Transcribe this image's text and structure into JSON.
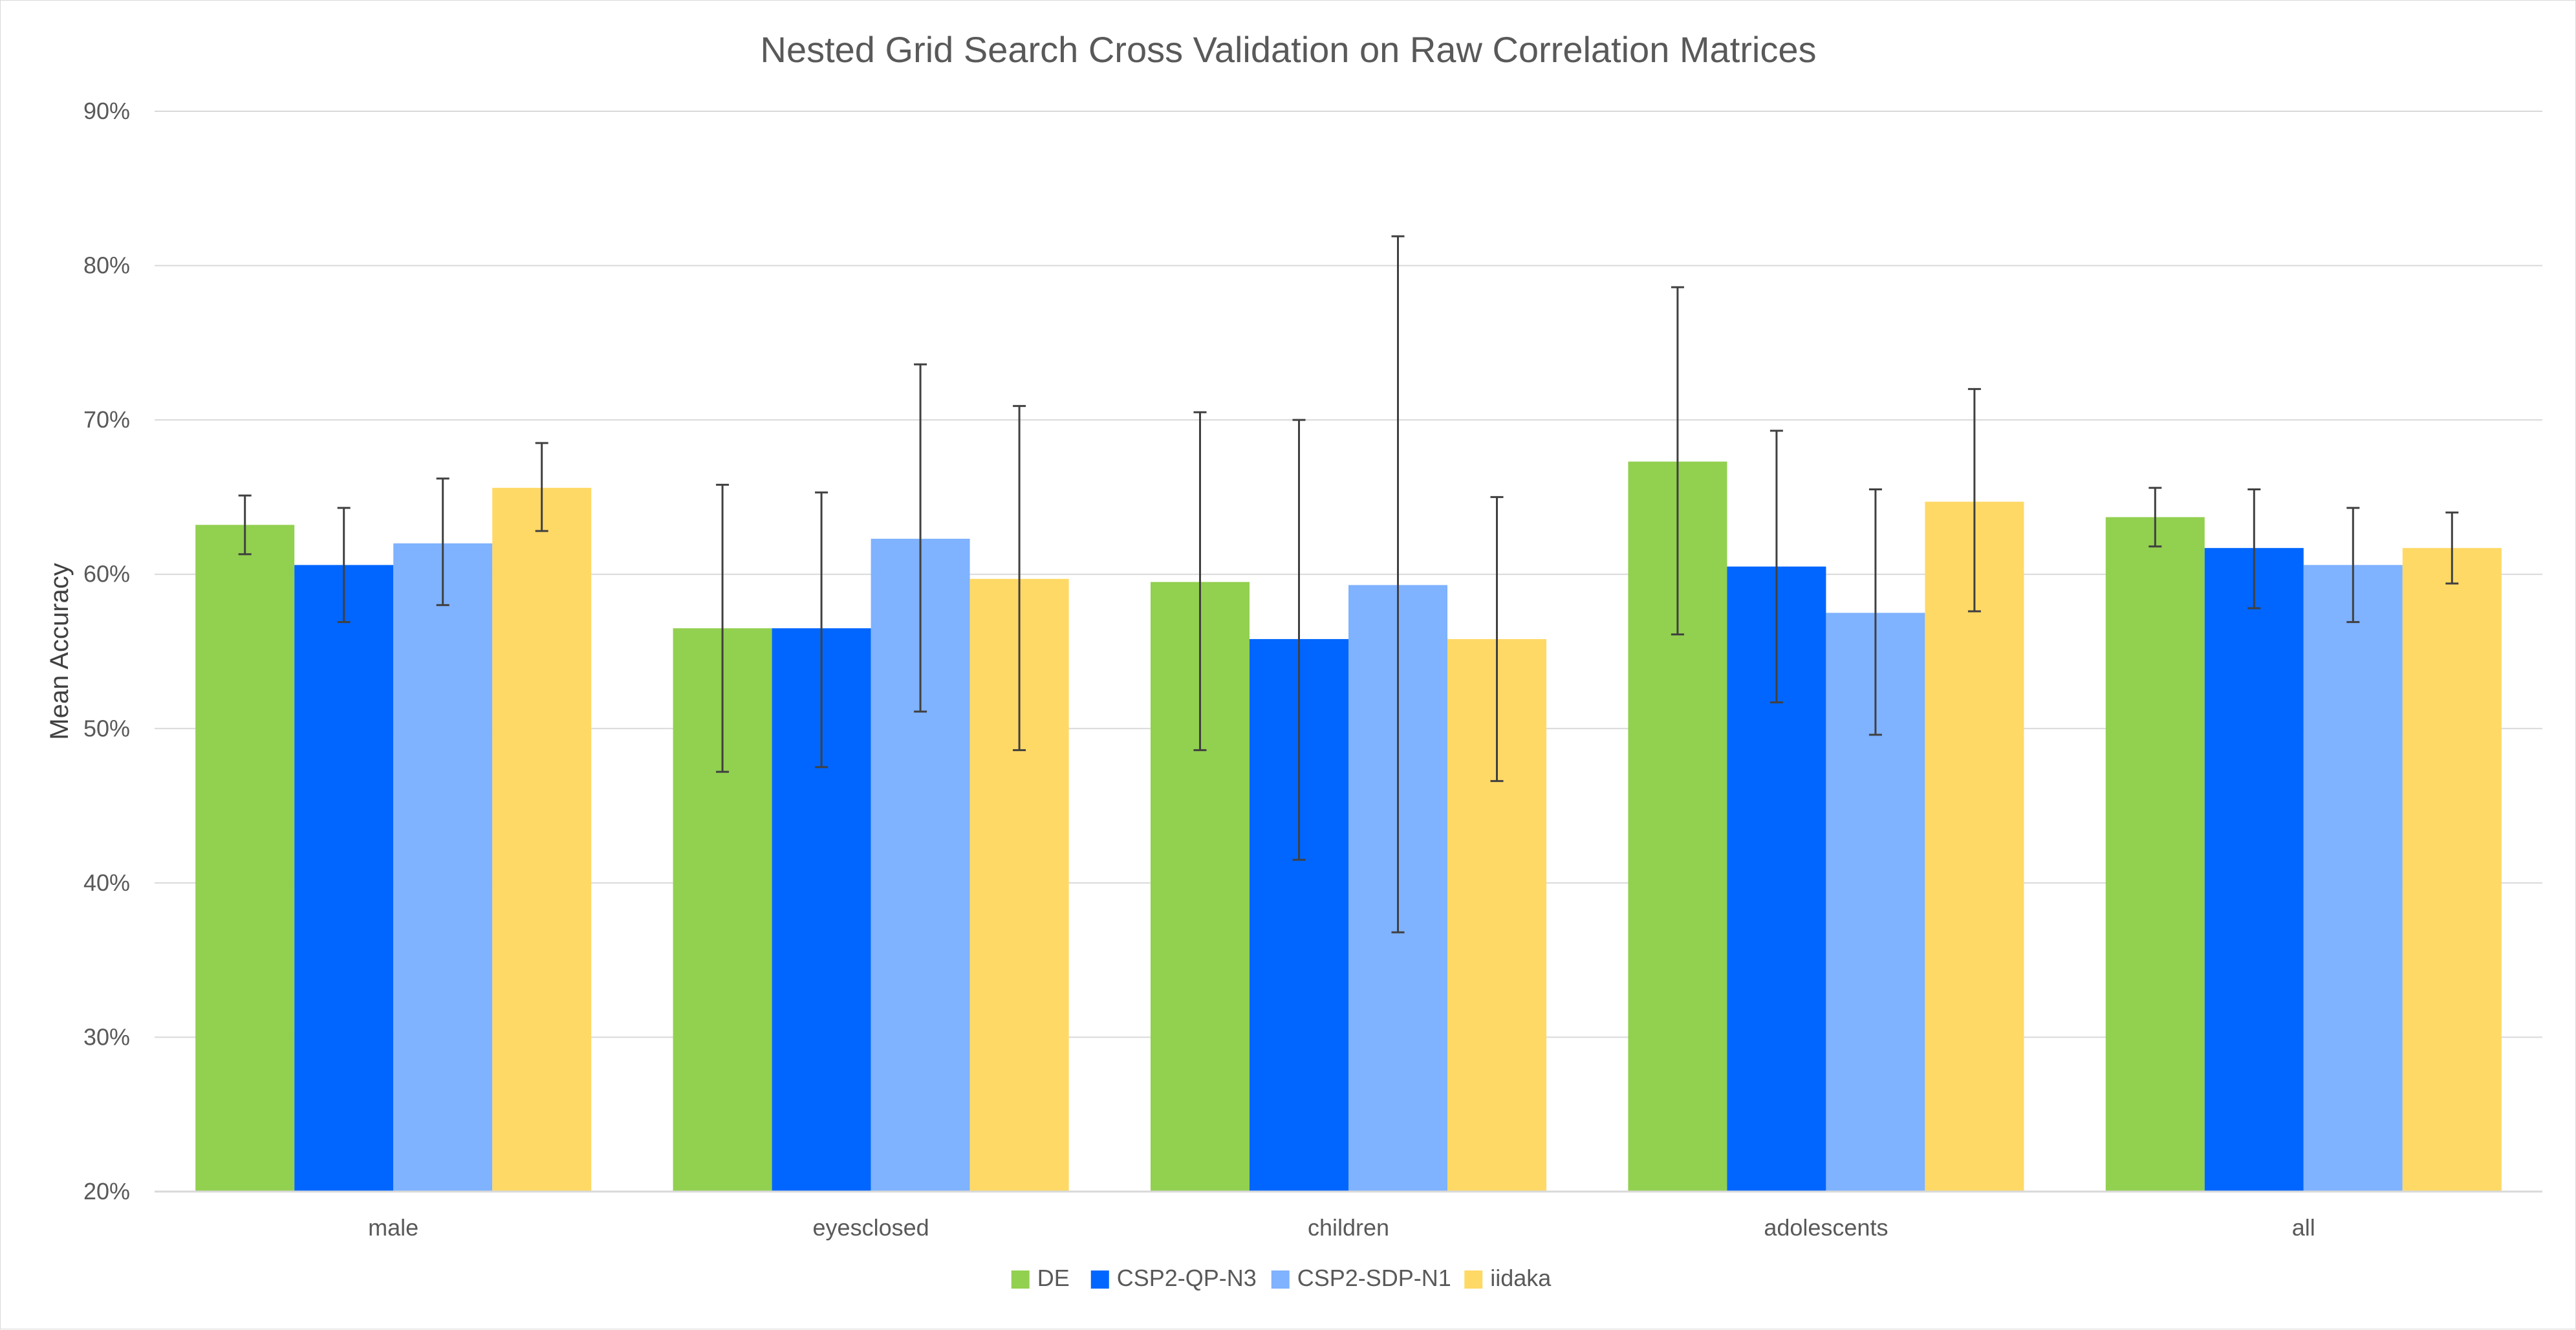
{
  "chart_data": {
    "type": "bar",
    "title": "Nested Grid Search Cross Validation on Raw Correlation Matrices",
    "xlabel": "",
    "ylabel": "Mean Accuracy",
    "ylim": [
      0.2,
      0.9
    ],
    "y_ticks": [
      "20%",
      "30%",
      "40%",
      "50%",
      "60%",
      "70%",
      "80%",
      "90%"
    ],
    "y_tick_values": [
      0.2,
      0.3,
      0.4,
      0.5,
      0.6,
      0.7,
      0.8,
      0.9
    ],
    "grid": true,
    "legend_position": "bottom",
    "categories": [
      "male",
      "eyesclosed",
      "children",
      "adolescents",
      "all"
    ],
    "series": [
      {
        "name": "DE",
        "color": "#92d050",
        "values": [
          0.632,
          0.565,
          0.595,
          0.673,
          0.637
        ],
        "error_low": [
          0.613,
          0.472,
          0.486,
          0.561,
          0.618
        ],
        "error_high": [
          0.651,
          0.658,
          0.705,
          0.786,
          0.656
        ]
      },
      {
        "name": "CSP2-QP-N3",
        "color": "#0066ff",
        "values": [
          0.606,
          0.565,
          0.558,
          0.605,
          0.617
        ],
        "error_low": [
          0.569,
          0.475,
          0.415,
          0.517,
          0.578
        ],
        "error_high": [
          0.643,
          0.653,
          0.7,
          0.693,
          0.655
        ]
      },
      {
        "name": "CSP2-SDP-N1",
        "color": "#7fb2ff",
        "values": [
          0.62,
          0.623,
          0.593,
          0.575,
          0.606
        ],
        "error_low": [
          0.58,
          0.511,
          0.368,
          0.496,
          0.569
        ],
        "error_high": [
          0.662,
          0.736,
          0.819,
          0.655,
          0.643
        ]
      },
      {
        "name": "iidaka",
        "color": "#ffd966",
        "values": [
          0.656,
          0.597,
          0.558,
          0.647,
          0.617
        ],
        "error_low": [
          0.628,
          0.486,
          0.466,
          0.576,
          0.594
        ],
        "error_high": [
          0.685,
          0.709,
          0.65,
          0.72,
          0.64
        ]
      }
    ]
  }
}
